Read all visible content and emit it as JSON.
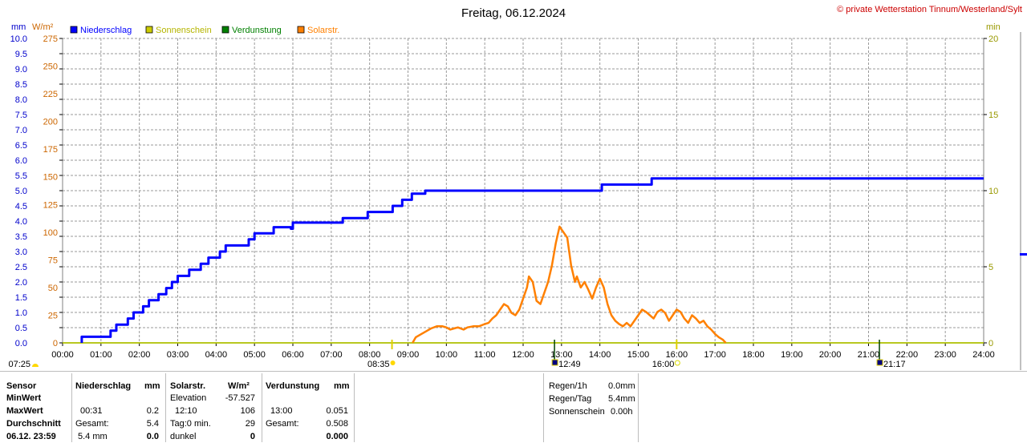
{
  "header": {
    "title": "Freitag, 06.12.2024",
    "copyright": "© private Wetterstation Tinnum/Westerland/Sylt",
    "units_left_mm": "mm",
    "units_left_wm2": "W/m²",
    "units_right_min": "min"
  },
  "legend": [
    {
      "label": "Niederschlag",
      "color": "#0000ff"
    },
    {
      "label": "Sonnenschein",
      "color": "#cccc00"
    },
    {
      "label": "Verdunstung",
      "color": "#008000"
    },
    {
      "label": "Solarstr.",
      "color": "#ff8000"
    }
  ],
  "colors": {
    "grid": "#9a9a9a",
    "axis_mm": "#0000cc",
    "axis_wm2": "#cc6600",
    "axis_min": "#999900",
    "frame": "#808080"
  },
  "chart_data": {
    "type": "line",
    "x_labels": [
      "00:00",
      "01:00",
      "02:00",
      "03:00",
      "04:00",
      "05:00",
      "06:00",
      "07:00",
      "08:00",
      "09:00",
      "10:00",
      "11:00",
      "12:00",
      "13:00",
      "14:00",
      "15:00",
      "16:00",
      "17:00",
      "18:00",
      "19:00",
      "20:00",
      "21:00",
      "22:00",
      "23:00",
      "24:00"
    ],
    "xlim": [
      0,
      24
    ],
    "mm_ticks": [
      "0.0",
      "0.5",
      "1.0",
      "1.5",
      "2.0",
      "2.5",
      "3.0",
      "3.5",
      "4.0",
      "4.5",
      "5.0",
      "5.5",
      "6.0",
      "6.5",
      "7.0",
      "7.5",
      "8.0",
      "8.5",
      "9.0",
      "9.5",
      "10.0"
    ],
    "wm2_ticks": [
      "0",
      "25",
      "50",
      "75",
      "100",
      "125",
      "150",
      "175",
      "200",
      "225",
      "250",
      "275"
    ],
    "min_ticks": [
      "0",
      "5",
      "10",
      "15",
      "20"
    ],
    "ylim_mm": [
      0,
      10
    ],
    "ylim_wm2": [
      0,
      275
    ],
    "ylim_min": [
      0,
      20
    ],
    "sun_events": [
      {
        "label": "07:25",
        "time": 7.417
      },
      {
        "label": "08:35",
        "time": 8.583
      },
      {
        "label": "12:49",
        "time": 12.817
      },
      {
        "label": "16:00",
        "time": 16.0
      },
      {
        "label": "21:17",
        "time": 21.283
      }
    ],
    "series": [
      {
        "name": "Niederschlag",
        "axis": "mm",
        "color": "#0000ff",
        "points": [
          [
            0.5,
            0
          ],
          [
            0.5,
            0.2
          ],
          [
            1.25,
            0.2
          ],
          [
            1.25,
            0.4
          ],
          [
            1.4,
            0.4
          ],
          [
            1.4,
            0.6
          ],
          [
            1.7,
            0.6
          ],
          [
            1.7,
            0.8
          ],
          [
            1.85,
            0.8
          ],
          [
            1.85,
            1.0
          ],
          [
            2.1,
            1.0
          ],
          [
            2.1,
            1.2
          ],
          [
            2.25,
            1.2
          ],
          [
            2.25,
            1.4
          ],
          [
            2.5,
            1.4
          ],
          [
            2.5,
            1.6
          ],
          [
            2.7,
            1.6
          ],
          [
            2.7,
            1.8
          ],
          [
            2.85,
            1.8
          ],
          [
            2.85,
            2.0
          ],
          [
            3.0,
            2.0
          ],
          [
            3.0,
            2.2
          ],
          [
            3.3,
            2.2
          ],
          [
            3.3,
            2.4
          ],
          [
            3.6,
            2.4
          ],
          [
            3.6,
            2.6
          ],
          [
            3.8,
            2.6
          ],
          [
            3.8,
            2.8
          ],
          [
            4.1,
            2.8
          ],
          [
            4.1,
            3.0
          ],
          [
            4.25,
            3.0
          ],
          [
            4.25,
            3.2
          ],
          [
            4.85,
            3.2
          ],
          [
            4.85,
            3.4
          ],
          [
            5.0,
            3.4
          ],
          [
            5.0,
            3.6
          ],
          [
            5.5,
            3.6
          ],
          [
            5.5,
            3.6
          ],
          [
            5.5,
            3.8
          ],
          [
            5.95,
            3.8
          ],
          [
            5.95,
            3.75
          ],
          [
            6.0,
            3.75
          ],
          [
            6.0,
            3.8
          ],
          [
            6.0,
            3.8
          ],
          [
            6.0,
            3.9
          ],
          [
            6.0,
            3.9
          ],
          [
            6.0,
            3.95
          ],
          [
            7.3,
            3.95
          ],
          [
            7.3,
            4.1
          ],
          [
            7.95,
            4.1
          ],
          [
            7.95,
            4.3
          ],
          [
            8.6,
            4.3
          ],
          [
            8.6,
            4.5
          ],
          [
            8.85,
            4.5
          ],
          [
            8.85,
            4.7
          ],
          [
            9.1,
            4.7
          ],
          [
            9.1,
            4.9
          ],
          [
            9.45,
            4.9
          ],
          [
            9.45,
            5.0
          ],
          [
            14.05,
            5.0
          ],
          [
            14.05,
            5.2
          ],
          [
            15.35,
            5.2
          ],
          [
            15.35,
            5.4
          ],
          [
            24,
            5.4
          ]
        ]
      },
      {
        "name": "Solarstr.",
        "axis": "wm2",
        "color": "#ff8000",
        "points": [
          [
            9.12,
            0
          ],
          [
            9.2,
            5
          ],
          [
            9.35,
            8
          ],
          [
            9.5,
            11
          ],
          [
            9.6,
            13
          ],
          [
            9.75,
            15
          ],
          [
            9.9,
            15
          ],
          [
            10.0,
            14
          ],
          [
            10.1,
            12
          ],
          [
            10.2,
            13
          ],
          [
            10.3,
            14
          ],
          [
            10.45,
            12
          ],
          [
            10.55,
            14
          ],
          [
            10.7,
            15
          ],
          [
            10.85,
            15
          ],
          [
            11.0,
            17
          ],
          [
            11.1,
            18
          ],
          [
            11.2,
            22
          ],
          [
            11.3,
            25
          ],
          [
            11.4,
            30
          ],
          [
            11.5,
            35
          ],
          [
            11.6,
            33
          ],
          [
            11.7,
            27
          ],
          [
            11.8,
            25
          ],
          [
            11.9,
            30
          ],
          [
            12.0,
            40
          ],
          [
            12.1,
            50
          ],
          [
            12.15,
            60
          ],
          [
            12.25,
            55
          ],
          [
            12.35,
            38
          ],
          [
            12.45,
            35
          ],
          [
            12.55,
            45
          ],
          [
            12.65,
            55
          ],
          [
            12.75,
            70
          ],
          [
            12.85,
            90
          ],
          [
            12.95,
            105
          ],
          [
            13.05,
            100
          ],
          [
            13.15,
            95
          ],
          [
            13.25,
            70
          ],
          [
            13.35,
            55
          ],
          [
            13.4,
            60
          ],
          [
            13.5,
            50
          ],
          [
            13.6,
            55
          ],
          [
            13.7,
            48
          ],
          [
            13.8,
            40
          ],
          [
            13.9,
            50
          ],
          [
            14.0,
            58
          ],
          [
            14.1,
            50
          ],
          [
            14.2,
            35
          ],
          [
            14.3,
            25
          ],
          [
            14.4,
            20
          ],
          [
            14.5,
            17
          ],
          [
            14.6,
            15
          ],
          [
            14.7,
            18
          ],
          [
            14.8,
            15
          ],
          [
            14.9,
            20
          ],
          [
            15.0,
            25
          ],
          [
            15.1,
            30
          ],
          [
            15.2,
            28
          ],
          [
            15.3,
            25
          ],
          [
            15.4,
            22
          ],
          [
            15.5,
            28
          ],
          [
            15.6,
            30
          ],
          [
            15.7,
            27
          ],
          [
            15.8,
            20
          ],
          [
            15.9,
            25
          ],
          [
            16.0,
            30
          ],
          [
            16.1,
            28
          ],
          [
            16.2,
            22
          ],
          [
            16.3,
            18
          ],
          [
            16.4,
            25
          ],
          [
            16.5,
            22
          ],
          [
            16.6,
            18
          ],
          [
            16.7,
            20
          ],
          [
            16.8,
            15
          ],
          [
            16.9,
            12
          ],
          [
            17.0,
            8
          ],
          [
            17.1,
            5
          ],
          [
            17.2,
            3
          ],
          [
            17.28,
            0
          ]
        ]
      },
      {
        "name": "Sonnenschein",
        "axis": "min",
        "color": "#cccc00",
        "points": [
          [
            0,
            0
          ],
          [
            24,
            0
          ]
        ]
      },
      {
        "name": "Verdunstung",
        "axis": "min",
        "color": "#008000",
        "points": [
          [
            0,
            0
          ],
          [
            24,
            0
          ]
        ]
      }
    ]
  },
  "stats": {
    "col_sensor": {
      "h": "Sensor",
      "r1": "MinWert",
      "r2": "MaxWert",
      "r3": "Durchschnitt",
      "r4": "06.12. 23:59"
    },
    "col_nieder": {
      "h": "Niederschlag",
      "unit": "mm",
      "max_t": "00:31",
      "max_v": "0.2",
      "gesamt_l": "Gesamt:",
      "gesamt_v": "5.4",
      "cur_l": "5.4 mm",
      "cur_v": "0.0"
    },
    "col_solar": {
      "h": "Solarstr.",
      "unit": "W/m²",
      "elev_l": "Elevation",
      "elev_v": "-57.527",
      "max_t": "12:10",
      "max_v": "106",
      "tag_l": "Tag:0 min.",
      "tag_v": "29",
      "cur_l": "dunkel",
      "cur_v": "0"
    },
    "col_verd": {
      "h": "Verdunstung",
      "unit": "mm",
      "max_t": "13:00",
      "max_v": "0.051",
      "gesamt_l": "Gesamt:",
      "gesamt_v": "0.508",
      "cur_v": "0.000"
    },
    "right": {
      "regen1h_l": "Regen/1h",
      "regen1h_v": "0.0mm",
      "regentag_l": "Regen/Tag",
      "regentag_v": "5.4mm",
      "sonne_l": "Sonnenschein",
      "sonne_v": "0.00h"
    }
  }
}
